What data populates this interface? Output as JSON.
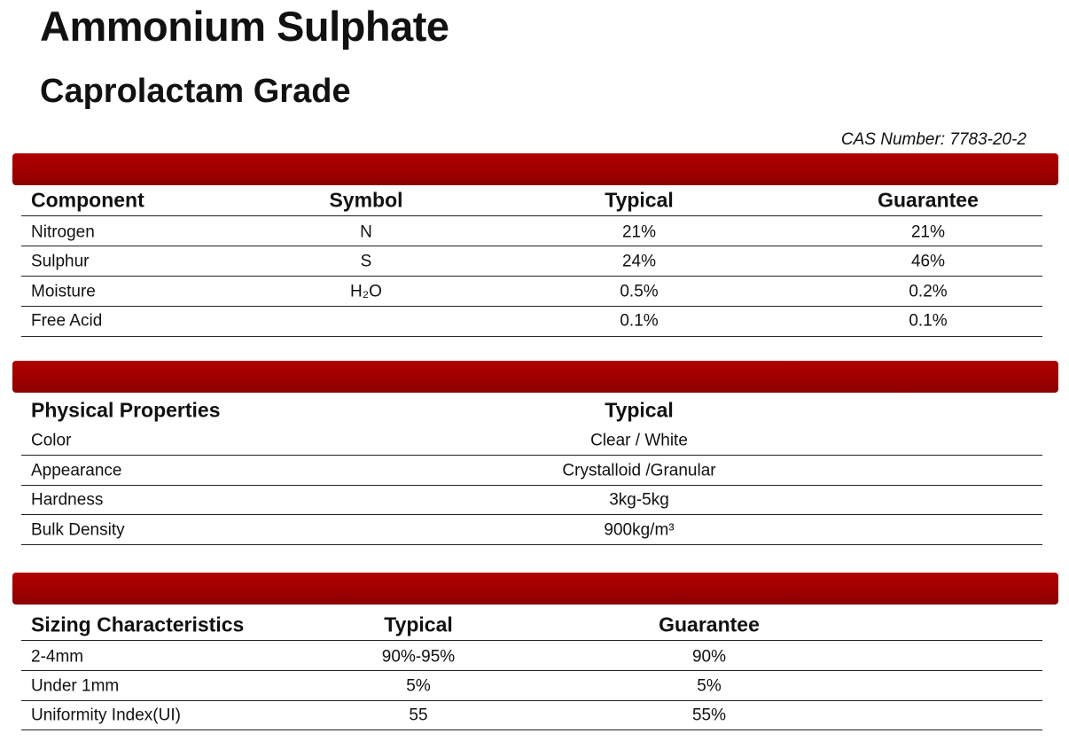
{
  "header": {
    "title": "Ammonium Sulphate",
    "subtitle": "Caprolactam Grade",
    "cas_number": "CAS Number: 7783-20-2"
  },
  "tables": [
    {
      "headers": [
        "Component",
        "Symbol",
        "Typical",
        "Guarantee"
      ],
      "rows": [
        [
          "Nitrogen",
          "N",
          "21%",
          "21%"
        ],
        [
          "Sulphur",
          "S",
          "24%",
          "46%"
        ],
        [
          "Moisture",
          "H₂O",
          "0.5%",
          "0.2%"
        ],
        [
          "Free Acid",
          null,
          "0.1%",
          "0.1%"
        ]
      ]
    },
    {
      "headers": [
        "Physical Properties",
        "Typical"
      ],
      "rows": [
        [
          "Color",
          "Clear / White"
        ],
        [
          "Appearance",
          "Crystalloid /Granular"
        ],
        [
          "Hardness",
          "3kg-5kg"
        ],
        [
          "Bulk Density",
          "900kg/m³"
        ]
      ]
    },
    {
      "headers": [
        "Sizing Characteristics",
        "Typical",
        "Guarantee"
      ],
      "rows": [
        [
          "2-4mm",
          "90%-95%",
          "90%"
        ],
        [
          "Under 1mm",
          "5%",
          "5%"
        ],
        [
          "Uniformity Index(UI)",
          "55",
          "55%"
        ]
      ]
    }
  ]
}
